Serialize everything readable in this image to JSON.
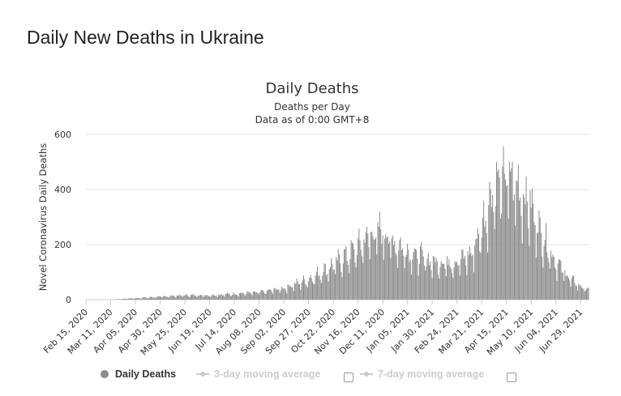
{
  "page": {
    "title": "Daily New Deaths in Ukraine"
  },
  "legend": {
    "daily": "Daily Deaths",
    "avg3": "3-day moving average",
    "avg7": "7-day moving average"
  },
  "colors": {
    "bars": "#8c8c8c",
    "grid": "#e6e6e6",
    "text": "#333333",
    "inactive": "#cccccc"
  },
  "chart_data": {
    "type": "bar",
    "title": "Daily Deaths",
    "subtitle": "Deaths per Day",
    "subtitle2": "Data as of 0:00 GMT+8",
    "ylabel": "Novel Coronavirus Daily Deaths",
    "xlabel": "",
    "ylim": [
      0,
      600
    ],
    "yticks": [
      0,
      200,
      400,
      600
    ],
    "x_range": [
      "2020-02-15",
      "2021-07-07"
    ],
    "xtick_labels": [
      "Feb 15, 2020",
      "Mar 11, 2020",
      "Apr 05, 2020",
      "Apr 30, 2020",
      "May 25, 2020",
      "Jun 19, 2020",
      "Jul 14, 2020",
      "Aug 08, 2020",
      "Sep 02, 2020",
      "Sep 27, 2020",
      "Oct 22, 2020",
      "Nov 16, 2020",
      "Dec 11, 2020",
      "Jan 05, 2021",
      "Jan 30, 2021",
      "Feb 24, 2021",
      "Mar 21, 2021",
      "Apr 15, 2021",
      "May 10, 2021",
      "Jun 04, 2021",
      "Jun 29, 2021"
    ],
    "grid": true,
    "legend_position": "bottom",
    "weekly_trend": {
      "dates": [
        "2020-02-15",
        "2020-03-11",
        "2020-04-05",
        "2020-04-30",
        "2020-05-25",
        "2020-06-19",
        "2020-07-14",
        "2020-08-08",
        "2020-09-02",
        "2020-09-27",
        "2020-10-22",
        "2020-11-16",
        "2020-11-26",
        "2020-12-11",
        "2020-12-21",
        "2021-01-05",
        "2021-01-30",
        "2021-02-24",
        "2021-03-11",
        "2021-03-21",
        "2021-04-01",
        "2021-04-15",
        "2021-04-25",
        "2021-05-10",
        "2021-05-20",
        "2021-06-04",
        "2021-06-19",
        "2021-06-29",
        "2021-07-07"
      ],
      "values": [
        0,
        0,
        5,
        10,
        15,
        15,
        20,
        25,
        40,
        70,
        120,
        180,
        220,
        240,
        200,
        170,
        130,
        130,
        160,
        250,
        380,
        430,
        400,
        320,
        230,
        130,
        70,
        45,
        35
      ]
    },
    "weekly_pattern": [
      0.65,
      1.05,
      1.15,
      1.2,
      1.1,
      1.0,
      0.85
    ]
  }
}
